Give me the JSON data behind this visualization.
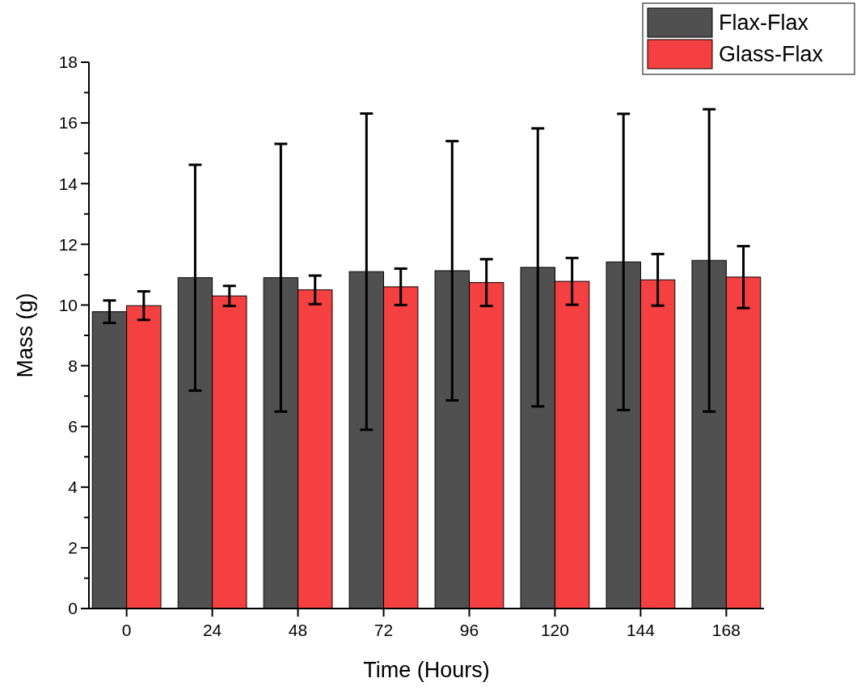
{
  "chart_data": {
    "type": "bar",
    "xlabel": "Time (Hours)",
    "ylabel": "Mass (g)",
    "categories": [
      "0",
      "24",
      "48",
      "72",
      "96",
      "120",
      "144",
      "168"
    ],
    "series": [
      {
        "name": "Flax-Flax",
        "color": "#505050",
        "values": [
          9.78,
          10.9,
          10.9,
          11.1,
          11.13,
          11.24,
          11.42,
          11.47
        ],
        "errors": [
          0.37,
          3.72,
          4.41,
          5.21,
          4.27,
          4.58,
          4.88,
          4.98
        ]
      },
      {
        "name": "Glass-Flax",
        "color": "#f44040",
        "values": [
          9.98,
          10.3,
          10.5,
          10.6,
          10.74,
          10.78,
          10.83,
          10.92
        ],
        "errors": [
          0.47,
          0.33,
          0.47,
          0.6,
          0.77,
          0.77,
          0.85,
          1.02
        ]
      }
    ],
    "ylim": [
      0,
      18
    ],
    "yticks": [
      0,
      2,
      4,
      6,
      8,
      10,
      12,
      14,
      16,
      18
    ],
    "grid": false,
    "legend": "top right"
  }
}
